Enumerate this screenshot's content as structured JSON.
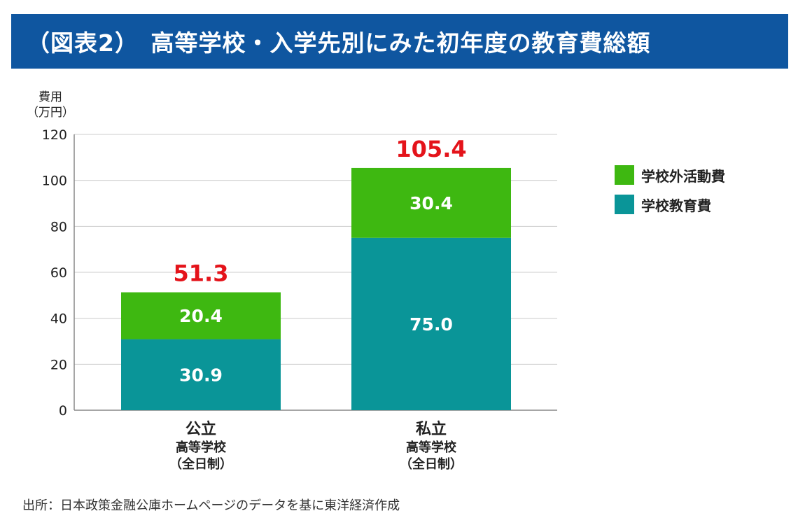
{
  "header": {
    "title": "（図表2）　高等学校・入学先別にみた初年度の教育費総額"
  },
  "yaxis": {
    "label_line1": "費用",
    "label_line2": "（万円）"
  },
  "legend": [
    {
      "label": "学校外活動費",
      "color": "#3eb811"
    },
    {
      "label": "学校教育費",
      "color": "#0a9598"
    }
  ],
  "categories": [
    {
      "main": "公立",
      "sub1": "高等学校",
      "sub2": "（全日制）"
    },
    {
      "main": "私立",
      "sub1": "高等学校",
      "sub2": "（全日制）"
    }
  ],
  "source": "出所：日本政策金融公庫ホームページのデータを基に東洋経済作成",
  "chart_data": {
    "type": "bar",
    "stacked": true,
    "title": "（図表2）　高等学校・入学先別にみた初年度の教育費総額",
    "ylabel": "費用（万円）",
    "xlabel": "",
    "ylim": [
      0,
      120
    ],
    "yticks": [
      0,
      20,
      40,
      60,
      80,
      100,
      120
    ],
    "categories": [
      "公立 高等学校（全日制）",
      "私立 高等学校（全日制）"
    ],
    "series": [
      {
        "name": "学校教育費",
        "values": [
          30.9,
          75.0
        ],
        "labels": [
          "30.9",
          "75.0"
        ],
        "color": "#0a9598"
      },
      {
        "name": "学校外活動費",
        "values": [
          20.4,
          30.4
        ],
        "labels": [
          "20.4",
          "30.4"
        ],
        "color": "#3eb811"
      }
    ],
    "totals": [
      "51.3",
      "105.4"
    ],
    "total_color": "#e4131a",
    "grid": true,
    "legend_position": "right"
  }
}
